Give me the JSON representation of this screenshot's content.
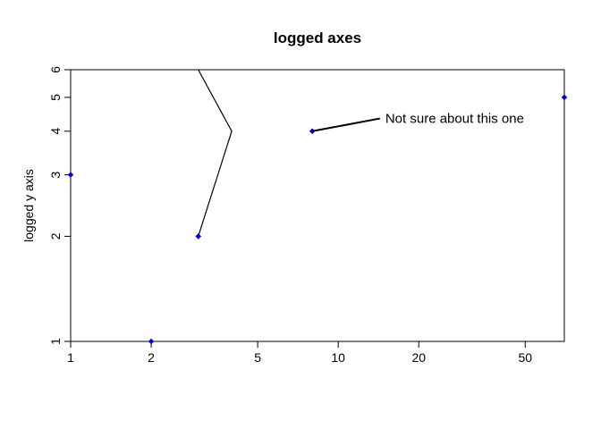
{
  "chart_data": {
    "type": "scatter",
    "title": "logged axes",
    "xlabel": "",
    "ylabel": "logged y axis",
    "x_scale": "log",
    "y_scale": "log",
    "xlim": [
      1,
      70
    ],
    "ylim": [
      1,
      6
    ],
    "x_ticks": [
      1,
      2,
      5,
      10,
      20,
      50
    ],
    "y_ticks": [
      1,
      2,
      3,
      4,
      5,
      6
    ],
    "grid": false,
    "point_color": "#0000cc",
    "line_color": "#000000",
    "points": [
      {
        "x": 1,
        "y": 3
      },
      {
        "x": 2,
        "y": 1
      },
      {
        "x": 3,
        "y": 2
      },
      {
        "x": 8,
        "y": 4
      },
      {
        "x": 70,
        "y": 5
      }
    ],
    "line": [
      {
        "x": 3,
        "y": 6
      },
      {
        "x": 4,
        "y": 4
      },
      {
        "x": 3,
        "y": 2
      }
    ],
    "annotation": {
      "text": "Not sure about this one",
      "x": 15,
      "y": 4.35,
      "arrow_to": {
        "x": 8,
        "y": 4
      }
    }
  }
}
